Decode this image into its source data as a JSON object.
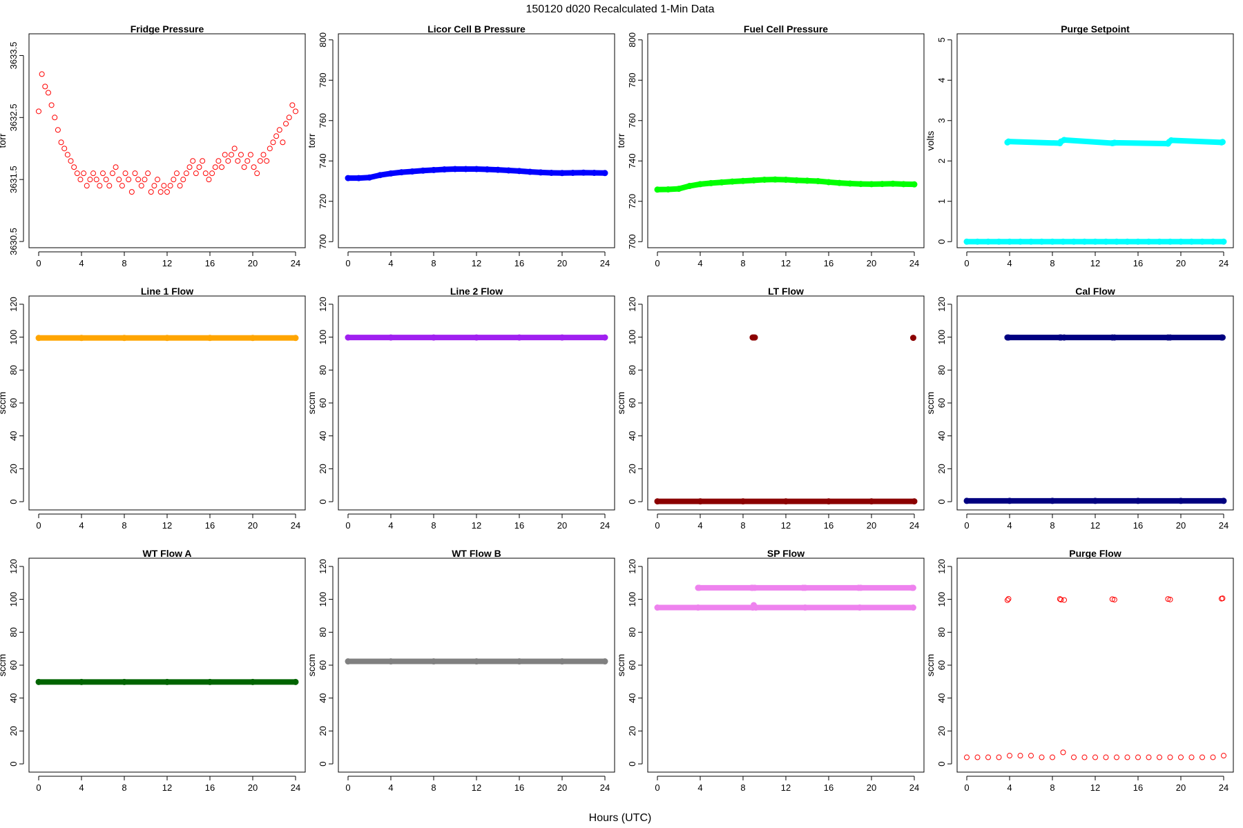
{
  "figure": {
    "title": "150120   d020   Recalculated 1-Min Data",
    "xlabel": "Hours (UTC)"
  },
  "chart_data": [
    {
      "type": "scatter",
      "title": "Fridge Pressure",
      "ylabel": "torr",
      "color": "#ff0000",
      "marker": "open",
      "xlim": [
        0,
        24
      ],
      "xticks": [
        0,
        4,
        8,
        12,
        16,
        20,
        24
      ],
      "ylim": [
        3630.4,
        3633.85
      ],
      "yticks": [
        3630.5,
        3631.5,
        3632.5,
        3633.5
      ],
      "series": [
        {
          "x": [
            0.0,
            0.3,
            0.6,
            0.9,
            1.2,
            1.5,
            1.8,
            2.1,
            2.4,
            2.7,
            3.0,
            3.3,
            3.6,
            3.9,
            4.2,
            4.5,
            4.8,
            5.1,
            5.4,
            5.7,
            6.0,
            6.3,
            6.6,
            6.9,
            7.2,
            7.5,
            7.8,
            8.1,
            8.4,
            8.7,
            9.0,
            9.3,
            9.6,
            9.9,
            10.2,
            10.5,
            10.8,
            11.1,
            11.4,
            11.7,
            12.0,
            12.3,
            12.6,
            12.9,
            13.2,
            13.5,
            13.8,
            14.1,
            14.4,
            14.7,
            15.0,
            15.3,
            15.6,
            15.9,
            16.2,
            16.5,
            16.8,
            17.1,
            17.4,
            17.7,
            18.0,
            18.3,
            18.6,
            18.9,
            19.2,
            19.5,
            19.8,
            20.1,
            20.4,
            20.7,
            21.0,
            21.3,
            21.6,
            21.9,
            22.2,
            22.5,
            22.8,
            23.1,
            23.4,
            23.7,
            24.0
          ],
          "y": [
            3632.6,
            3633.2,
            3633.0,
            3632.9,
            3632.7,
            3632.5,
            3632.3,
            3632.1,
            3632.0,
            3631.9,
            3631.8,
            3631.7,
            3631.6,
            3631.5,
            3631.6,
            3631.4,
            3631.5,
            3631.6,
            3631.5,
            3631.4,
            3631.6,
            3631.5,
            3631.4,
            3631.6,
            3631.7,
            3631.5,
            3631.4,
            3631.6,
            3631.5,
            3631.3,
            3631.6,
            3631.5,
            3631.4,
            3631.5,
            3631.6,
            3631.3,
            3631.4,
            3631.5,
            3631.3,
            3631.4,
            3631.3,
            3631.4,
            3631.5,
            3631.6,
            3631.4,
            3631.5,
            3631.6,
            3631.7,
            3631.8,
            3631.6,
            3631.7,
            3631.8,
            3631.6,
            3631.5,
            3631.6,
            3631.7,
            3631.8,
            3631.7,
            3631.9,
            3631.8,
            3631.9,
            3632.0,
            3631.8,
            3631.9,
            3631.7,
            3631.8,
            3631.9,
            3631.7,
            3631.6,
            3631.8,
            3631.9,
            3631.8,
            3632.0,
            3632.1,
            3632.2,
            3632.3,
            3632.1,
            3632.4,
            3632.5,
            3632.7,
            3632.6
          ]
        }
      ]
    },
    {
      "type": "scatter",
      "title": "Licor Cell B Pressure",
      "ylabel": "torr",
      "color": "#0000ff",
      "marker": "filled",
      "xlim": [
        0,
        24
      ],
      "xticks": [
        0,
        4,
        8,
        12,
        16,
        20,
        24
      ],
      "ylim": [
        697,
        803
      ],
      "yticks": [
        700,
        720,
        740,
        760,
        780,
        800
      ],
      "series": [
        {
          "x": [
            0,
            1,
            2,
            3,
            4,
            5,
            6,
            7,
            8,
            9,
            10,
            11,
            12,
            13,
            14,
            15,
            16,
            17,
            18,
            19,
            20,
            21,
            22,
            23,
            24
          ],
          "y": [
            731.5,
            731.5,
            731.8,
            733.0,
            733.8,
            734.4,
            734.8,
            735.2,
            735.5,
            735.8,
            736.0,
            736.0,
            736.0,
            735.8,
            735.6,
            735.3,
            735.0,
            734.6,
            734.3,
            734.1,
            734.0,
            734.1,
            734.2,
            734.1,
            734.0
          ]
        }
      ]
    },
    {
      "type": "scatter",
      "title": "Fuel Cell Pressure",
      "ylabel": "torr",
      "color": "#00ff00",
      "marker": "filled",
      "xlim": [
        0,
        24
      ],
      "xticks": [
        0,
        4,
        8,
        12,
        16,
        20,
        24
      ],
      "ylim": [
        697,
        803
      ],
      "yticks": [
        700,
        720,
        740,
        760,
        780,
        800
      ],
      "series": [
        {
          "x": [
            0,
            1,
            2,
            3,
            4,
            5,
            6,
            7,
            8,
            9,
            10,
            11,
            12,
            13,
            14,
            15,
            16,
            17,
            18,
            19,
            20,
            21,
            22,
            23,
            24
          ],
          "y": [
            725.8,
            725.9,
            726.2,
            727.6,
            728.5,
            729.0,
            729.4,
            729.8,
            730.1,
            730.4,
            730.7,
            730.8,
            730.7,
            730.4,
            730.2,
            730.0,
            729.5,
            729.1,
            728.8,
            728.6,
            728.5,
            728.6,
            728.7,
            728.5,
            728.4
          ]
        }
      ]
    },
    {
      "type": "scatter",
      "title": "Purge Setpoint",
      "ylabel": "volts",
      "color": "#00ffff",
      "marker": "filled",
      "xlim": [
        0,
        24
      ],
      "xticks": [
        0,
        4,
        8,
        12,
        16,
        20,
        24
      ],
      "ylim": [
        -0.15,
        5.15
      ],
      "yticks": [
        0,
        1,
        2,
        3,
        4,
        5
      ],
      "series": [
        {
          "x": [
            0,
            1,
            2,
            3,
            4,
            5,
            6,
            7,
            8,
            9,
            10,
            11,
            12,
            13,
            14,
            15,
            16,
            17,
            18,
            19,
            20,
            21,
            22,
            23,
            24
          ],
          "y": [
            0,
            0,
            0,
            0,
            0,
            0,
            0,
            0,
            0,
            0,
            0,
            0,
            0,
            0,
            0,
            0,
            0,
            0,
            0,
            0,
            0,
            0,
            0,
            0,
            0
          ]
        },
        {
          "x": [
            3.8,
            3.9,
            8.7,
            8.8,
            9.1,
            13.6,
            13.8,
            18.8,
            18.9,
            19.1,
            23.8,
            23.9
          ],
          "y": [
            2.46,
            2.48,
            2.44,
            2.48,
            2.52,
            2.44,
            2.45,
            2.43,
            2.47,
            2.51,
            2.46,
            2.47
          ]
        }
      ]
    },
    {
      "type": "scatter",
      "title": "Line 1 Flow",
      "ylabel": "sccm",
      "color": "#ffa500",
      "marker": "filled",
      "xlim": [
        0,
        24
      ],
      "xticks": [
        0,
        4,
        8,
        12,
        16,
        20,
        24
      ],
      "ylim": [
        -5,
        125
      ],
      "yticks": [
        0,
        20,
        40,
        60,
        80,
        100,
        120
      ],
      "series": [
        {
          "x": [
            0,
            4,
            8,
            12,
            16,
            20,
            24
          ],
          "y": [
            99.5,
            99.5,
            99.5,
            99.5,
            99.5,
            99.5,
            99.5
          ]
        }
      ]
    },
    {
      "type": "scatter",
      "title": "Line 2 Flow",
      "ylabel": "sccm",
      "color": "#a020f0",
      "marker": "filled",
      "xlim": [
        0,
        24
      ],
      "xticks": [
        0,
        4,
        8,
        12,
        16,
        20,
        24
      ],
      "ylim": [
        -5,
        125
      ],
      "yticks": [
        0,
        20,
        40,
        60,
        80,
        100,
        120
      ],
      "series": [
        {
          "x": [
            0,
            4,
            8,
            12,
            16,
            20,
            24
          ],
          "y": [
            99.8,
            99.8,
            99.8,
            99.8,
            99.8,
            99.8,
            99.8
          ]
        }
      ]
    },
    {
      "type": "scatter",
      "title": "LT Flow",
      "ylabel": "sccm",
      "color": "#8b0000",
      "marker": "filled",
      "xlim": [
        0,
        24
      ],
      "xticks": [
        0,
        4,
        8,
        12,
        16,
        20,
        24
      ],
      "ylim": [
        -5,
        125
      ],
      "yticks": [
        0,
        20,
        40,
        60,
        80,
        100,
        120
      ],
      "series": [
        {
          "x": [
            0,
            4,
            8,
            12,
            16,
            20,
            24
          ],
          "y": [
            0.2,
            0.2,
            0.2,
            0.2,
            0.2,
            0.2,
            0.2
          ]
        },
        {
          "x": [
            8.9,
            9.0,
            9.1,
            23.9
          ],
          "y": [
            99.8,
            99.8,
            99.8,
            99.6
          ]
        }
      ]
    },
    {
      "type": "scatter",
      "title": "Cal Flow",
      "ylabel": "sccm",
      "color": "#000080",
      "marker": "filled",
      "xlim": [
        0,
        24
      ],
      "xticks": [
        0,
        4,
        8,
        12,
        16,
        20,
        24
      ],
      "ylim": [
        -5,
        125
      ],
      "yticks": [
        0,
        20,
        40,
        60,
        80,
        100,
        120
      ],
      "series": [
        {
          "x": [
            0,
            4,
            8,
            12,
            16,
            20,
            24
          ],
          "y": [
            0.5,
            0.5,
            0.5,
            0.5,
            0.5,
            0.5,
            0.5
          ]
        },
        {
          "x": [
            3.8,
            3.9,
            8.7,
            8.8,
            9.1,
            13.6,
            13.8,
            18.8,
            19.0,
            23.8,
            23.9
          ],
          "y": [
            99.8,
            99.8,
            99.8,
            99.8,
            99.8,
            99.8,
            99.8,
            99.8,
            99.8,
            99.8,
            99.8
          ]
        }
      ]
    },
    {
      "type": "scatter",
      "title": "WT Flow A",
      "ylabel": "sccm",
      "color": "#006400",
      "marker": "filled",
      "xlim": [
        0,
        24
      ],
      "xticks": [
        0,
        4,
        8,
        12,
        16,
        20,
        24
      ],
      "ylim": [
        -5,
        125
      ],
      "yticks": [
        0,
        20,
        40,
        60,
        80,
        100,
        120
      ],
      "series": [
        {
          "x": [
            0,
            4,
            8,
            12,
            16,
            20,
            24
          ],
          "y": [
            49.8,
            49.8,
            49.8,
            49.8,
            49.8,
            49.8,
            49.8
          ]
        }
      ]
    },
    {
      "type": "scatter",
      "title": "WT Flow B",
      "ylabel": "sccm",
      "color": "#808080",
      "marker": "filled",
      "xlim": [
        0,
        24
      ],
      "xticks": [
        0,
        4,
        8,
        12,
        16,
        20,
        24
      ],
      "ylim": [
        -5,
        125
      ],
      "yticks": [
        0,
        20,
        40,
        60,
        80,
        100,
        120
      ],
      "series": [
        {
          "x": [
            0,
            4,
            8,
            12,
            16,
            20,
            24
          ],
          "y": [
            62.3,
            62.3,
            62.3,
            62.3,
            62.3,
            62.3,
            62.3
          ]
        }
      ]
    },
    {
      "type": "scatter",
      "title": "SP Flow",
      "ylabel": "sccm",
      "color": "#ee82ee",
      "marker": "filled",
      "xlim": [
        0,
        24
      ],
      "xticks": [
        0,
        4,
        8,
        12,
        16,
        20,
        24
      ],
      "ylim": [
        -5,
        125
      ],
      "yticks": [
        0,
        20,
        40,
        60,
        80,
        100,
        120
      ],
      "series": [
        {
          "x": [
            0,
            3.8,
            8.9,
            9.0,
            9.2,
            13.8,
            18.9,
            23.9
          ],
          "y": [
            95.0,
            95.0,
            95.0,
            96.5,
            95.0,
            95.0,
            95.0,
            95.0
          ]
        },
        {
          "x": [
            3.8,
            3.9,
            8.8,
            8.9,
            9.1,
            13.6,
            13.8,
            18.8,
            19.0,
            23.8,
            23.9
          ],
          "y": [
            107,
            107,
            107,
            107,
            107,
            107,
            107,
            107,
            107,
            107,
            107
          ]
        }
      ]
    },
    {
      "type": "scatter",
      "title": "Purge Flow",
      "ylabel": "sccm",
      "color": "#ff0000",
      "marker": "open",
      "xlim": [
        0,
        24
      ],
      "xticks": [
        0,
        4,
        8,
        12,
        16,
        20,
        24
      ],
      "ylim": [
        -5,
        125
      ],
      "yticks": [
        0,
        20,
        40,
        60,
        80,
        100,
        120
      ],
      "series": [
        {
          "x": [
            0,
            1,
            2,
            3,
            4,
            5,
            6,
            7,
            8,
            9,
            10,
            11,
            12,
            13,
            14,
            15,
            16,
            17,
            18,
            19,
            20,
            21,
            22,
            23,
            24
          ],
          "y": [
            4,
            4,
            4,
            4,
            5,
            5,
            5,
            4,
            4,
            7,
            4,
            4,
            4,
            4,
            4,
            4,
            4,
            4,
            4,
            4,
            4,
            4,
            4,
            4,
            5
          ]
        },
        {
          "x": [
            3.8,
            3.9,
            8.7,
            8.8,
            9.1,
            13.6,
            13.8,
            18.8,
            19.0,
            23.8,
            23.9
          ],
          "y": [
            99.5,
            100.3,
            100.2,
            99.8,
            99.6,
            100.1,
            99.8,
            100.2,
            99.9,
            100.4,
            100.6
          ]
        }
      ]
    }
  ]
}
